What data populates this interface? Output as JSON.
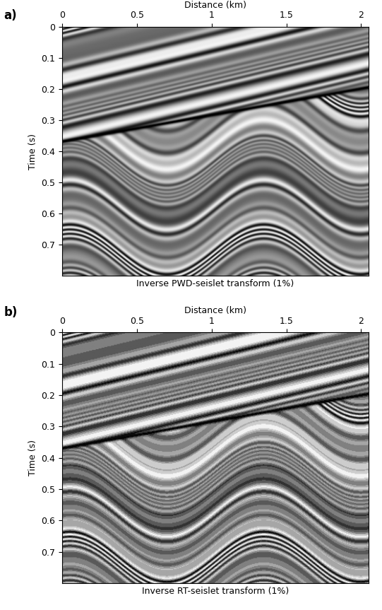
{
  "chart_data": [
    {
      "type": "image",
      "panel": "a)",
      "xlabel": "Distance (km)",
      "ylabel": "Time (s)",
      "caption": "Inverse PWD-seislet transform (1%)",
      "xlim": [
        0,
        2.05
      ],
      "ylim": [
        0.8,
        0
      ],
      "xticks": [
        0,
        0.5,
        1,
        1.5,
        2
      ],
      "yticks": [
        0,
        0.1,
        0.2,
        0.3,
        0.4,
        0.5,
        0.6,
        0.7
      ]
    },
    {
      "type": "image",
      "panel": "b)",
      "xlabel": "Distance (km)",
      "ylabel": "Time (s)",
      "caption": "Inverse RT-seislet transform (1%)",
      "xlim": [
        0,
        2.05
      ],
      "ylim": [
        0.8,
        0
      ],
      "xticks": [
        0,
        0.5,
        1,
        1.5,
        2
      ],
      "yticks": [
        0,
        0.1,
        0.2,
        0.3,
        0.4,
        0.5,
        0.6,
        0.7
      ]
    }
  ]
}
